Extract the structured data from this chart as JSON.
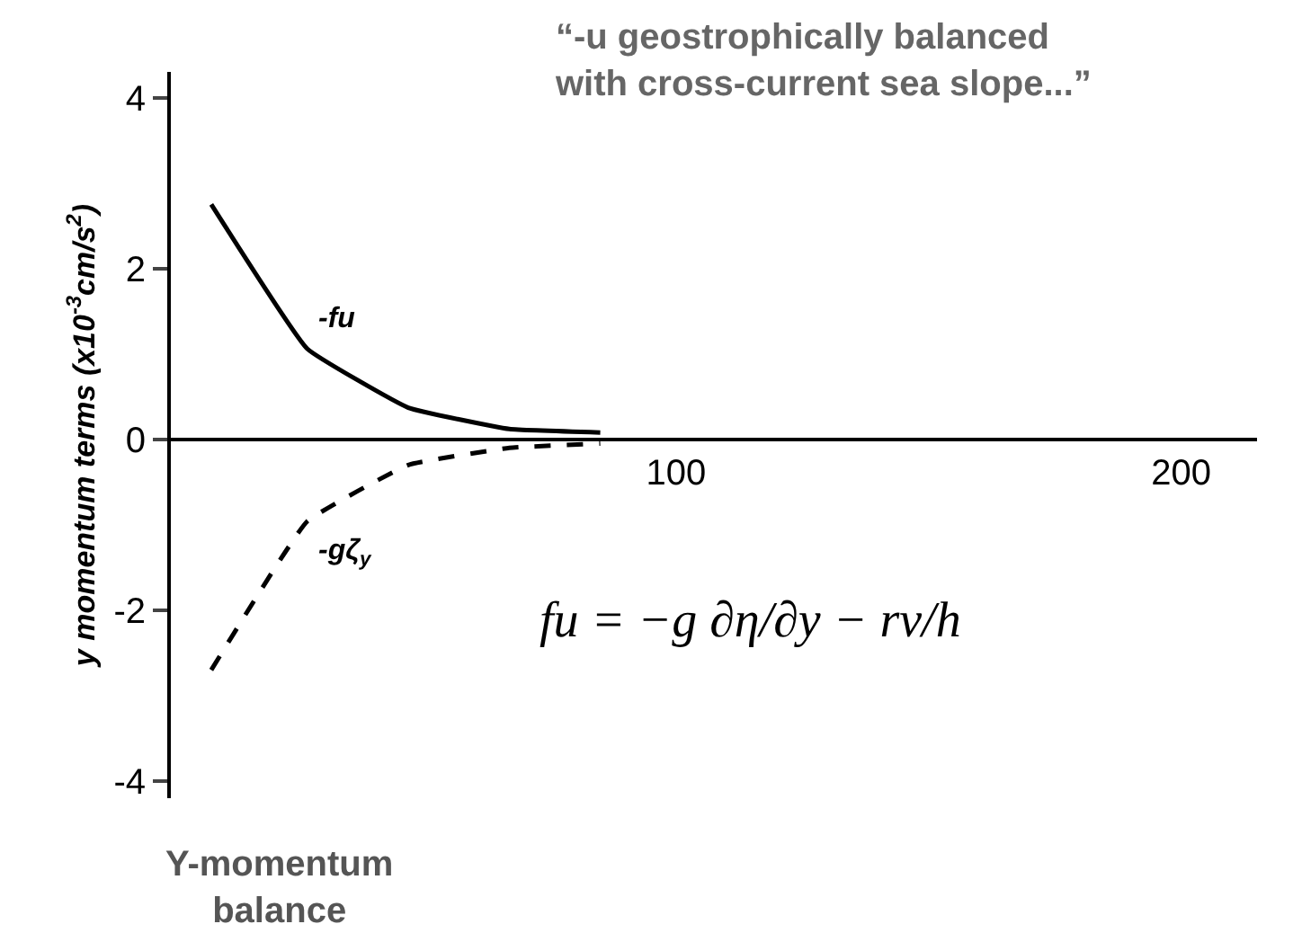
{
  "chart_data": {
    "type": "line",
    "ylabel": "y momentum terms (x10$^{-3}$cm/s$^{2}$)",
    "annotations": [
      "“-u geostrophically balanced\nwith cross-current sea slope...”",
      "fu = −g ∂η/∂y − rv/h",
      "Y-momentum\nbalance"
    ],
    "series": [
      {
        "name": "-fu",
        "color": "#000000",
        "line_style": "solid",
        "x": [
          8,
          27,
          47,
          67,
          85
        ],
        "values": [
          2.75,
          1.06,
          0.37,
          0.12,
          0.08
        ]
      },
      {
        "name": "-gζ$_{y}$",
        "color": "#000000",
        "line_style": "dashed",
        "x": [
          8,
          27,
          47,
          67,
          85
        ],
        "values": [
          -2.7,
          -0.96,
          -0.3,
          -0.1,
          -0.05
        ]
      }
    ],
    "xlim": [
      0,
      215
    ],
    "xticks": [
      100,
      200
    ],
    "ylim": [
      -4.2,
      4.3
    ],
    "yticks": [
      -4,
      -2,
      0,
      2,
      4
    ],
    "grid": false,
    "legend": false,
    "marker": "none"
  }
}
